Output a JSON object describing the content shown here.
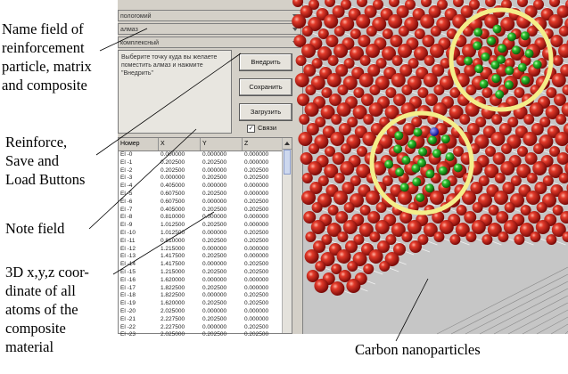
{
  "annotations": {
    "name_field": [
      "Name field of",
      "reinforcement",
      "particle, matrix",
      "and composite"
    ],
    "buttons": [
      "Reinforce,",
      "Save and",
      "Load Buttons"
    ],
    "note": [
      "Note field"
    ],
    "coords": [
      "3D x,y,z coor-",
      "dinate of all",
      "atoms of the",
      "composite",
      "material"
    ],
    "carbon": "Carbon nanoparticles"
  },
  "fields": [
    "пологомий",
    "алмаз",
    "комплексный"
  ],
  "note_text": "Выберите точку куда вы желаете поместить алмаз и нажмите \"Внедрить\"",
  "buttons": {
    "reinforce": "Внедрить",
    "save": "Сохранить",
    "load": "Загрузить"
  },
  "checkbox": {
    "label": "Связи",
    "checked": true,
    "mark": "✓"
  },
  "table": {
    "headers": [
      "Номер",
      "X",
      "Y",
      "Z"
    ],
    "rows": [
      [
        "El -0",
        "0.000000",
        "0.000000",
        "0.000000"
      ],
      [
        "El -1",
        "0.202500",
        "0.202500",
        "0.000000"
      ],
      [
        "El -2",
        "0.202500",
        "0.000000",
        "0.202500"
      ],
      [
        "El -3",
        "0.000000",
        "0.202500",
        "0.202500"
      ],
      [
        "El -4",
        "0.405000",
        "0.000000",
        "0.000000"
      ],
      [
        "El -5",
        "0.607500",
        "0.202500",
        "0.000000"
      ],
      [
        "El -6",
        "0.607500",
        "0.000000",
        "0.202500"
      ],
      [
        "El -7",
        "0.405000",
        "0.202500",
        "0.202500"
      ],
      [
        "El -8",
        "0.810000",
        "0.000000",
        "0.000000"
      ],
      [
        "El -9",
        "1.012500",
        "0.202500",
        "0.000000"
      ],
      [
        "El -10",
        "1.012500",
        "0.000000",
        "0.202500"
      ],
      [
        "El -11",
        "0.810000",
        "0.202500",
        "0.202500"
      ],
      [
        "El -12",
        "1.215000",
        "0.000000",
        "0.000000"
      ],
      [
        "El -13",
        "1.417500",
        "0.202500",
        "0.000000"
      ],
      [
        "El -14",
        "1.417500",
        "0.000000",
        "0.202500"
      ],
      [
        "El -15",
        "1.215000",
        "0.202500",
        "0.202500"
      ],
      [
        "El -16",
        "1.620000",
        "0.000000",
        "0.000000"
      ],
      [
        "El -17",
        "1.822500",
        "0.202500",
        "0.000000"
      ],
      [
        "El -18",
        "1.822500",
        "0.000000",
        "0.202500"
      ],
      [
        "El -19",
        "1.620000",
        "0.202500",
        "0.202500"
      ],
      [
        "El -20",
        "2.025000",
        "0.000000",
        "0.000000"
      ],
      [
        "El -21",
        "2.227500",
        "0.202500",
        "0.000000"
      ],
      [
        "El -22",
        "2.227500",
        "0.000000",
        "0.202500"
      ],
      [
        "El -23",
        "2.025000",
        "0.202500",
        "0.202500"
      ]
    ]
  },
  "colors": {
    "matrix_atom": "#cc1a1a",
    "carbon_atom": "#1fa31f",
    "highlight_ring": "#f4ee8a",
    "marker": "#1010c0"
  }
}
